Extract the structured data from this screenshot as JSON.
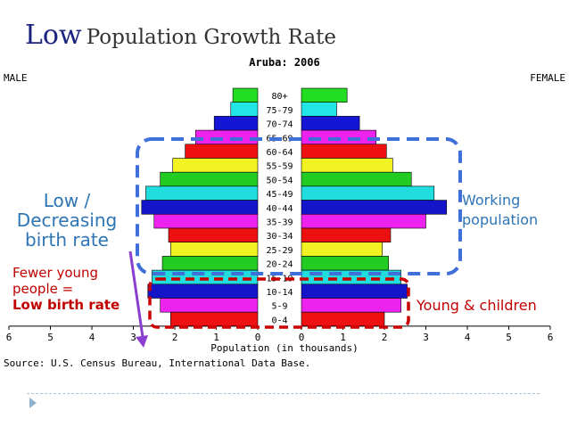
{
  "slide": {
    "title_word1": "Low",
    "title_rest": "Population Growth Rate"
  },
  "annotations": {
    "left_blue_line1": "Low /",
    "left_blue_line2": "Decreasing",
    "left_blue_line3": "birth rate",
    "left_red_line1": "Fewer young",
    "left_red_line2": "people =",
    "left_red_line3": "Low birth rate",
    "right_blue_line1": "Working",
    "right_blue_line2": "population",
    "right_red": "Young & children"
  },
  "colors": {
    "blue_dashed": "#3f6fd8",
    "red_dashed": "#cc0000",
    "purple_arrow": "#8a3fd1",
    "text_blue": "#2e75b6",
    "text_red": "#c00000"
  },
  "chart_data": {
    "type": "bar",
    "title": "Aruba: 2006",
    "left_label": "MALE",
    "right_label": "FEMALE",
    "xlabel": "Population (in thousands)",
    "source": "Source: U.S. Census Bureau, International Data Base.",
    "xlim": [
      0,
      6
    ],
    "x_ticks": [
      "6",
      "5",
      "4",
      "3",
      "2",
      "1",
      "0",
      "0",
      "1",
      "2",
      "3",
      "4",
      "5",
      "6"
    ],
    "categories": [
      "80+",
      "75-79",
      "70-74",
      "65-69",
      "60-64",
      "55-59",
      "50-54",
      "45-49",
      "40-44",
      "35-39",
      "30-34",
      "25-29",
      "20-24",
      "15-19",
      "10-14",
      "5-9",
      "0-4"
    ],
    "series": [
      {
        "name": "MALE",
        "values": [
          0.6,
          0.65,
          1.05,
          1.5,
          1.75,
          2.05,
          2.35,
          2.7,
          2.8,
          2.5,
          2.15,
          2.1,
          2.3,
          2.55,
          2.65,
          2.35,
          2.1
        ]
      },
      {
        "name": "FEMALE",
        "values": [
          1.1,
          0.85,
          1.4,
          1.8,
          2.05,
          2.2,
          2.65,
          3.2,
          3.5,
          3.0,
          2.15,
          1.95,
          2.1,
          2.4,
          2.55,
          2.4,
          2.0
        ]
      }
    ],
    "row_colors": [
      "#22dd22",
      "#22e5e5",
      "#1515d5",
      "#ee22ee",
      "#ee1111",
      "#f2f222",
      "#22cc22",
      "#22dddd",
      "#1414c8",
      "#ee22ee",
      "#ee1111",
      "#f2f222",
      "#22cc22",
      "#22dddd",
      "#1414c8",
      "#ee22ee",
      "#ee1111"
    ]
  }
}
